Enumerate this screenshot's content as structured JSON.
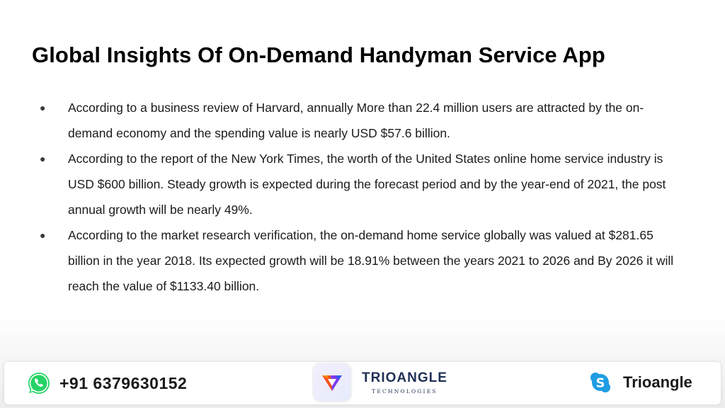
{
  "slide": {
    "title": "Global Insights Of On-Demand Handyman Service App",
    "bullet_marker": "●",
    "bullets": [
      "According to a business review of Harvard, annually More than 22.4 million users are attracted by the on-demand economy and the spending value is nearly USD $57.6 billion.",
      "According to the report of the New York Times, the worth of the United States online home service industry is USD $600 billion. Steady growth is expected during the forecast period and by the year-end of 2021, the post annual growth will be nearly 49%.",
      "According to the market research verification, the on-demand home service globally was valued at $281.65 billion in the year 2018. Its expected growth will be 18.91% between the years 2021 to 2026 and By 2026 it will reach the value of $1133.40 billion."
    ]
  },
  "footer": {
    "phone": "+91 6379630152",
    "phone_icon": "whatsapp-icon",
    "brand_name": "TRIOANGLE",
    "brand_tagline": "TECHNOLOGIES",
    "brand_icon": "trioangle-logo-icon",
    "skype_name": "Trioangle",
    "skype_icon": "skype-icon"
  },
  "colors": {
    "whatsapp_green": "#25d366",
    "skype_blue": "#1e9de3",
    "brand_navy": "#1f2f56"
  }
}
